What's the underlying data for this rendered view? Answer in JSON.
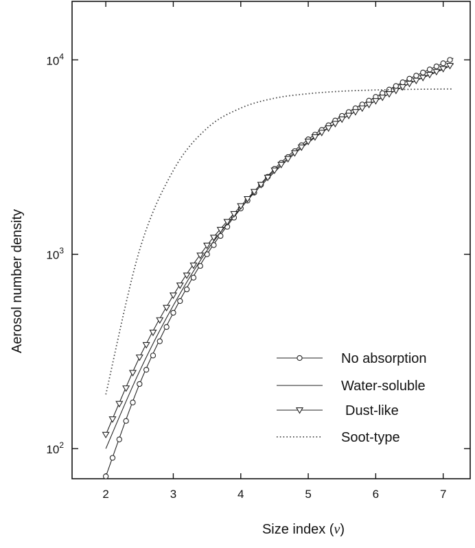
{
  "chart_data": {
    "type": "line",
    "title": "",
    "xlabel": "Size index",
    "xlabel_symbol": "ν",
    "ylabel": "Aerosol number density",
    "x_scale": "linear",
    "y_scale": "log",
    "xlim": [
      1.5,
      7.4
    ],
    "ylim": [
      70,
      20000
    ],
    "x_ticks": [
      2,
      3,
      4,
      5,
      6,
      7
    ],
    "x_tick_labels": [
      "2",
      "3",
      "4",
      "5",
      "6",
      "7"
    ],
    "y_ticks": [
      100,
      1000,
      10000
    ],
    "y_tick_labels": [
      {
        "base": "10",
        "exp": "2"
      },
      {
        "base": "10",
        "exp": "3"
      },
      {
        "base": "10",
        "exp": "4"
      }
    ],
    "grid": false,
    "legend_position": "lower-right",
    "x": [
      2.0,
      2.5,
      3.0,
      3.5,
      4.0,
      4.5,
      5.0,
      5.5,
      6.0,
      6.5,
      7.0,
      7.15
    ],
    "series": [
      {
        "name": "No absorption",
        "marker": "circle",
        "style": "solid",
        "values": [
          72,
          215,
          500,
          1000,
          1720,
          2750,
          3900,
          5150,
          6450,
          8000,
          9600,
          10200
        ]
      },
      {
        "name": "Water-soluble",
        "marker": "none",
        "style": "solid",
        "values": [
          100,
          250,
          545,
          1045,
          1730,
          2650,
          3750,
          4950,
          6150,
          7550,
          8950,
          9550
        ]
      },
      {
        "name": "Dust-like",
        "marker": "triangle-down",
        "style": "solid",
        "values": [
          118,
          295,
          615,
          1110,
          1770,
          2700,
          3800,
          4950,
          6150,
          7550,
          9000,
          9500
        ]
      },
      {
        "name": "Soot-type",
        "marker": "none",
        "style": "dotted",
        "values": [
          190,
          1050,
          2700,
          4450,
          5650,
          6350,
          6700,
          6900,
          7000,
          7050,
          7080,
          7080
        ]
      }
    ]
  }
}
